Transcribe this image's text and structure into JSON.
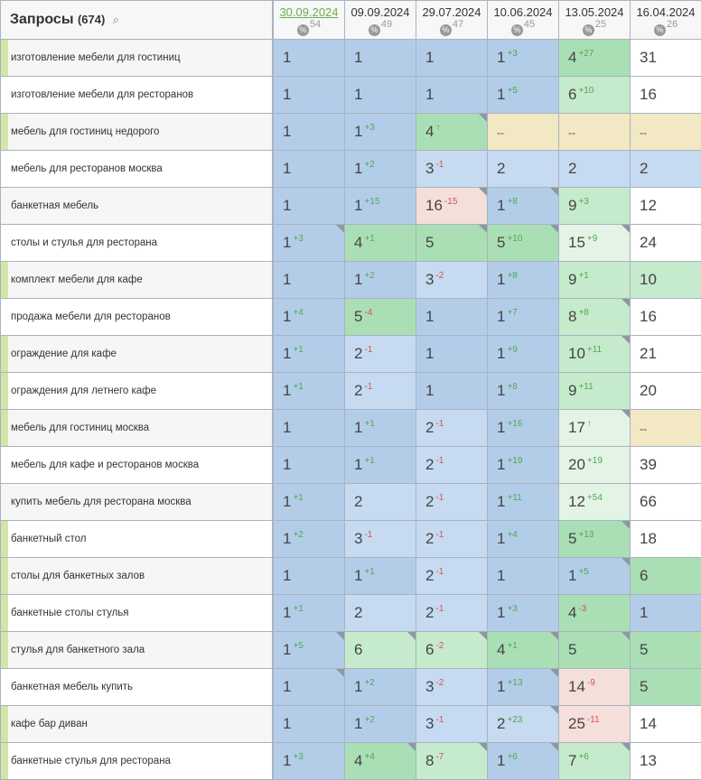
{
  "header": {
    "title": "Запросы",
    "count": "(674)",
    "search_icon": "search-icon"
  },
  "dates": [
    {
      "label": "30.09.2024",
      "pct": "54",
      "active": true
    },
    {
      "label": "09.09.2024",
      "pct": "49"
    },
    {
      "label": "29.07.2024",
      "pct": "47"
    },
    {
      "label": "10.06.2024",
      "pct": "45"
    },
    {
      "label": "13.05.2024",
      "pct": "25"
    },
    {
      "label": "16.04.2024",
      "pct": "26"
    }
  ],
  "percent_badge_label": "%",
  "colors": {
    "b1": "#b3cde9",
    "b2": "#c6daf1",
    "g1": "#aadfb5",
    "g2": "#c6eacc",
    "g3": "#e3f4e6",
    "w": "#ffffff",
    "r": "#f5dfdb",
    "y": "#f2e8c3",
    "up": "#5cb85c",
    "down": "#d9534f",
    "marked": "#d3e6a8"
  },
  "rows": [
    {
      "query": "изготовление мебели для гостиниц",
      "marked": true,
      "cells": [
        [
          "1",
          "",
          "b1",
          0
        ],
        [
          "1",
          "",
          "b1",
          0
        ],
        [
          "1",
          "",
          "b1",
          0
        ],
        [
          "1",
          "+3",
          "b1",
          0
        ],
        [
          "4",
          "+27",
          "g1",
          0
        ],
        [
          "31",
          "",
          "w",
          0
        ]
      ]
    },
    {
      "query": "изготовление мебели для ресторанов",
      "marked": false,
      "cells": [
        [
          "1",
          "",
          "b1",
          0
        ],
        [
          "1",
          "",
          "b1",
          0
        ],
        [
          "1",
          "",
          "b1",
          0
        ],
        [
          "1",
          "+5",
          "b1",
          0
        ],
        [
          "6",
          "+10",
          "g2",
          0
        ],
        [
          "16",
          "",
          "w",
          0
        ]
      ]
    },
    {
      "query": "мебель для гостиниц недорого",
      "marked": true,
      "cells": [
        [
          "1",
          "",
          "b1",
          0
        ],
        [
          "1",
          "+3",
          "b1",
          0
        ],
        [
          "4",
          "↑",
          "g1",
          1
        ],
        [
          "--",
          "",
          "y",
          0
        ],
        [
          "--",
          "",
          "y",
          0
        ],
        [
          "--",
          "",
          "y",
          0
        ]
      ]
    },
    {
      "query": "мебель для ресторанов москва",
      "marked": false,
      "cells": [
        [
          "1",
          "",
          "b1",
          0
        ],
        [
          "1",
          "+2",
          "b1",
          0
        ],
        [
          "3",
          "-1",
          "b2",
          0
        ],
        [
          "2",
          "",
          "b2",
          0
        ],
        [
          "2",
          "",
          "b2",
          0
        ],
        [
          "2",
          "",
          "b2",
          0
        ]
      ]
    },
    {
      "query": "банкетная мебель",
      "marked": false,
      "cells": [
        [
          "1",
          "",
          "b1",
          0
        ],
        [
          "1",
          "+15",
          "b1",
          0
        ],
        [
          "16",
          "-15",
          "r",
          1
        ],
        [
          "1",
          "+8",
          "b1",
          1
        ],
        [
          "9",
          "+3",
          "g2",
          0
        ],
        [
          "12",
          "",
          "w",
          0
        ]
      ]
    },
    {
      "query": "столы и стулья для ресторана",
      "marked": false,
      "cells": [
        [
          "1",
          "+3",
          "b1",
          1
        ],
        [
          "4",
          "+1",
          "g1",
          0
        ],
        [
          "5",
          "",
          "g1",
          1
        ],
        [
          "5",
          "+10",
          "g1",
          1
        ],
        [
          "15",
          "+9",
          "g3",
          1
        ],
        [
          "24",
          "",
          "w",
          0
        ]
      ]
    },
    {
      "query": "комплект мебели для кафе",
      "marked": true,
      "cells": [
        [
          "1",
          "",
          "b1",
          0
        ],
        [
          "1",
          "+2",
          "b1",
          0
        ],
        [
          "3",
          "-2",
          "b2",
          0
        ],
        [
          "1",
          "+8",
          "b1",
          0
        ],
        [
          "9",
          "+1",
          "g2",
          0
        ],
        [
          "10",
          "",
          "g2",
          0
        ]
      ]
    },
    {
      "query": "продажа мебели для ресторанов",
      "marked": false,
      "cells": [
        [
          "1",
          "+4",
          "b1",
          0
        ],
        [
          "5",
          "-4",
          "g1",
          0
        ],
        [
          "1",
          "",
          "b1",
          0
        ],
        [
          "1",
          "+7",
          "b1",
          0
        ],
        [
          "8",
          "+8",
          "g2",
          1
        ],
        [
          "16",
          "",
          "w",
          0
        ]
      ]
    },
    {
      "query": "ограждение для кафе",
      "marked": true,
      "cells": [
        [
          "1",
          "+1",
          "b1",
          0
        ],
        [
          "2",
          "-1",
          "b2",
          0
        ],
        [
          "1",
          "",
          "b1",
          0
        ],
        [
          "1",
          "+9",
          "b1",
          0
        ],
        [
          "10",
          "+11",
          "g2",
          1
        ],
        [
          "21",
          "",
          "w",
          0
        ]
      ]
    },
    {
      "query": "ограждения для летнего кафе",
      "marked": true,
      "cells": [
        [
          "1",
          "+1",
          "b1",
          0
        ],
        [
          "2",
          "-1",
          "b2",
          0
        ],
        [
          "1",
          "",
          "b1",
          0
        ],
        [
          "1",
          "+8",
          "b1",
          0
        ],
        [
          "9",
          "+11",
          "g2",
          0
        ],
        [
          "20",
          "",
          "w",
          0
        ]
      ]
    },
    {
      "query": "мебель для гостиниц москва",
      "marked": true,
      "cells": [
        [
          "1",
          "",
          "b1",
          0
        ],
        [
          "1",
          "+1",
          "b1",
          0
        ],
        [
          "2",
          "-1",
          "b2",
          0
        ],
        [
          "1",
          "+16",
          "b1",
          0
        ],
        [
          "17",
          "↑",
          "g3",
          1
        ],
        [
          "--",
          "",
          "y",
          0
        ]
      ]
    },
    {
      "query": "мебель для кафе и ресторанов москва",
      "marked": false,
      "cells": [
        [
          "1",
          "",
          "b1",
          0
        ],
        [
          "1",
          "+1",
          "b1",
          0
        ],
        [
          "2",
          "-1",
          "b2",
          0
        ],
        [
          "1",
          "+19",
          "b1",
          0
        ],
        [
          "20",
          "+19",
          "g3",
          0
        ],
        [
          "39",
          "",
          "w",
          0
        ]
      ]
    },
    {
      "query": "купить мебель для ресторана москва",
      "marked": false,
      "cells": [
        [
          "1",
          "+1",
          "b1",
          0
        ],
        [
          "2",
          "",
          "b2",
          0
        ],
        [
          "2",
          "-1",
          "b2",
          0
        ],
        [
          "1",
          "+11",
          "b1",
          0
        ],
        [
          "12",
          "+54",
          "g3",
          0
        ],
        [
          "66",
          "",
          "w",
          0
        ]
      ]
    },
    {
      "query": "банкетный стол",
      "marked": true,
      "cells": [
        [
          "1",
          "+2",
          "b1",
          0
        ],
        [
          "3",
          "-1",
          "b2",
          0
        ],
        [
          "2",
          "-1",
          "b2",
          0
        ],
        [
          "1",
          "+4",
          "b1",
          0
        ],
        [
          "5",
          "+13",
          "g1",
          1
        ],
        [
          "18",
          "",
          "w",
          0
        ]
      ]
    },
    {
      "query": "столы для банкетных залов",
      "marked": true,
      "cells": [
        [
          "1",
          "",
          "b1",
          0
        ],
        [
          "1",
          "+1",
          "b1",
          0
        ],
        [
          "2",
          "-1",
          "b2",
          0
        ],
        [
          "1",
          "",
          "b1",
          0
        ],
        [
          "1",
          "+5",
          "b1",
          1
        ],
        [
          "6",
          "",
          "g1",
          0
        ]
      ]
    },
    {
      "query": "банкетные столы стулья",
      "marked": true,
      "cells": [
        [
          "1",
          "+1",
          "b1",
          0
        ],
        [
          "2",
          "",
          "b2",
          0
        ],
        [
          "2",
          "-1",
          "b2",
          0
        ],
        [
          "1",
          "+3",
          "b1",
          0
        ],
        [
          "4",
          "-3",
          "g1",
          0
        ],
        [
          "1",
          "",
          "b1",
          0
        ]
      ]
    },
    {
      "query": "стулья для банкетного зала",
      "marked": true,
      "cells": [
        [
          "1",
          "+5",
          "b1",
          1
        ],
        [
          "6",
          "",
          "g2",
          1
        ],
        [
          "6",
          "-2",
          "g2",
          1
        ],
        [
          "4",
          "+1",
          "g1",
          1
        ],
        [
          "5",
          "",
          "g1",
          1
        ],
        [
          "5",
          "",
          "g1",
          0
        ]
      ]
    },
    {
      "query": "банкетная мебель купить",
      "marked": false,
      "cells": [
        [
          "1",
          "",
          "b1",
          1
        ],
        [
          "1",
          "+2",
          "b1",
          0
        ],
        [
          "3",
          "-2",
          "b2",
          0
        ],
        [
          "1",
          "+13",
          "b1",
          1
        ],
        [
          "14",
          "-9",
          "r",
          0
        ],
        [
          "5",
          "",
          "g1",
          0
        ]
      ]
    },
    {
      "query": "кафе бар диван",
      "marked": true,
      "cells": [
        [
          "1",
          "",
          "b1",
          0
        ],
        [
          "1",
          "+2",
          "b1",
          0
        ],
        [
          "3",
          "-1",
          "b2",
          0
        ],
        [
          "2",
          "+23",
          "b2",
          1
        ],
        [
          "25",
          "-11",
          "r",
          0
        ],
        [
          "14",
          "",
          "w",
          0
        ]
      ]
    },
    {
      "query": "банкетные стулья для ресторана",
      "marked": true,
      "cells": [
        [
          "1",
          "+3",
          "b1",
          0
        ],
        [
          "4",
          "+4",
          "g1",
          1
        ],
        [
          "8",
          "-7",
          "g2",
          1
        ],
        [
          "1",
          "+6",
          "b1",
          1
        ],
        [
          "7",
          "+6",
          "g2",
          1
        ],
        [
          "13",
          "",
          "w",
          0
        ]
      ]
    }
  ]
}
